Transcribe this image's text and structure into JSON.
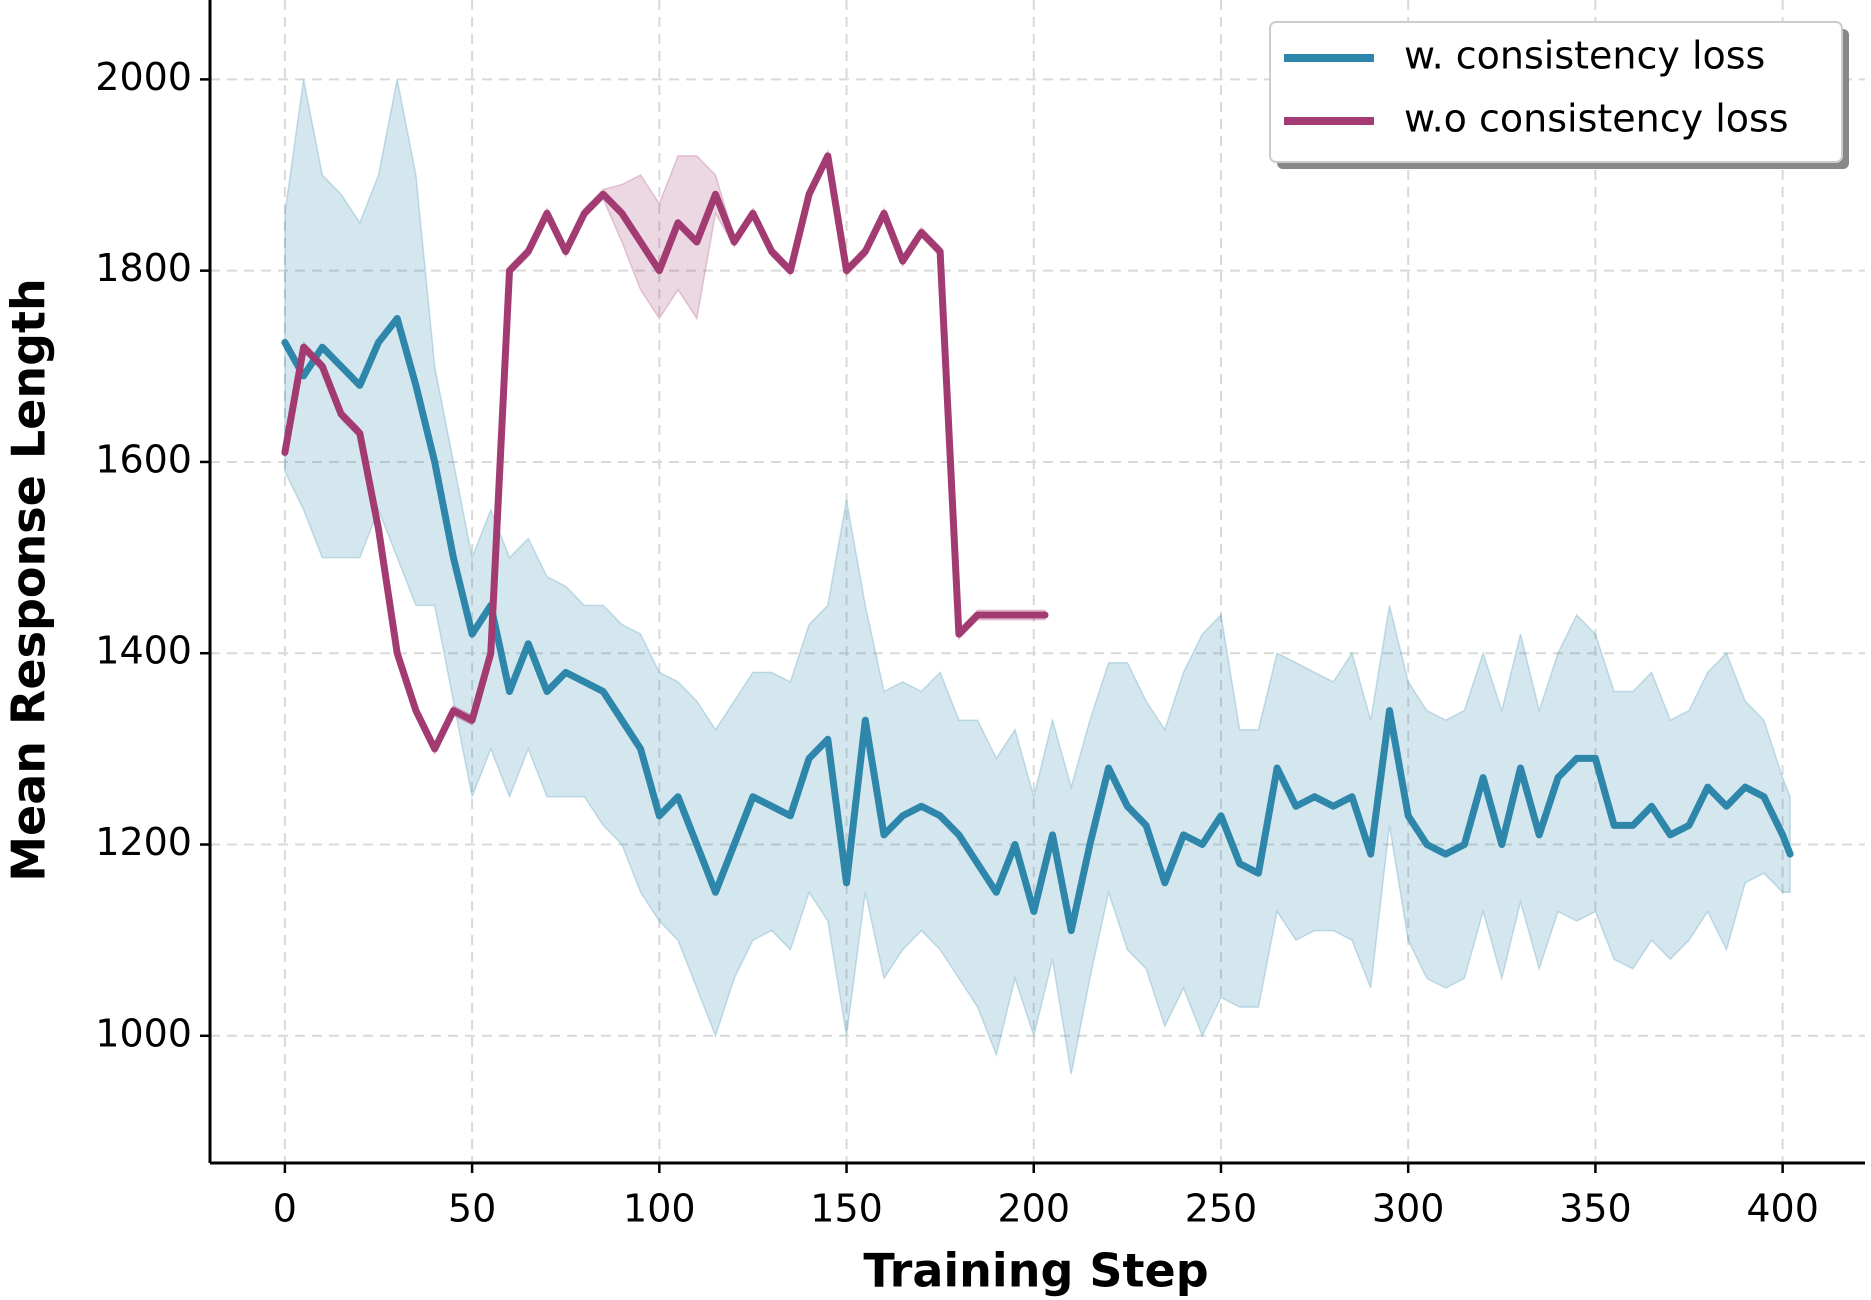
{
  "chart_data": {
    "type": "line",
    "xlabel": "Training Step",
    "ylabel": "Mean Response Length",
    "xlim": [
      -20,
      422
    ],
    "ylim": [
      867,
      2083
    ],
    "xticks": [
      0,
      50,
      100,
      150,
      200,
      250,
      300,
      350,
      400
    ],
    "yticks": [
      1000,
      1200,
      1400,
      1600,
      1800,
      2000
    ],
    "grid": true,
    "legend": "upper right",
    "series": [
      {
        "name": "w. consistency loss",
        "color": "#2e86ab",
        "x": [
          0,
          5,
          10,
          15,
          20,
          25,
          30,
          35,
          40,
          45,
          50,
          55,
          60,
          65,
          70,
          75,
          80,
          85,
          90,
          95,
          100,
          105,
          110,
          115,
          120,
          125,
          130,
          135,
          140,
          145,
          150,
          155,
          160,
          165,
          170,
          175,
          180,
          185,
          190,
          195,
          200,
          205,
          210,
          215,
          220,
          225,
          230,
          235,
          240,
          245,
          250,
          255,
          260,
          265,
          270,
          275,
          280,
          285,
          290,
          295,
          300,
          305,
          310,
          315,
          320,
          325,
          330,
          335,
          340,
          345,
          350,
          355,
          360,
          365,
          370,
          375,
          380,
          385,
          390,
          395,
          400,
          402
        ],
        "values": [
          1725,
          1690,
          1720,
          1700,
          1680,
          1725,
          1750,
          1680,
          1600,
          1500,
          1420,
          1450,
          1360,
          1410,
          1360,
          1380,
          1370,
          1360,
          1330,
          1300,
          1230,
          1250,
          1200,
          1150,
          1200,
          1250,
          1240,
          1230,
          1290,
          1310,
          1160,
          1330,
          1210,
          1230,
          1240,
          1230,
          1210,
          1180,
          1150,
          1200,
          1130,
          1210,
          1110,
          1200,
          1280,
          1240,
          1220,
          1160,
          1210,
          1200,
          1230,
          1180,
          1170,
          1280,
          1240,
          1250,
          1240,
          1250,
          1190,
          1340,
          1230,
          1200,
          1190,
          1200,
          1270,
          1200,
          1280,
          1210,
          1270,
          1290,
          1290,
          1220,
          1220,
          1240,
          1210,
          1220,
          1260,
          1240,
          1260,
          1250,
          1210,
          1190
        ],
        "upper": [
          1860,
          2000,
          1900,
          1880,
          1850,
          1900,
          2000,
          1900,
          1700,
          1600,
          1500,
          1550,
          1500,
          1520,
          1480,
          1470,
          1450,
          1450,
          1430,
          1420,
          1380,
          1370,
          1350,
          1320,
          1350,
          1380,
          1380,
          1370,
          1430,
          1450,
          1560,
          1450,
          1360,
          1370,
          1360,
          1380,
          1330,
          1330,
          1290,
          1320,
          1250,
          1330,
          1260,
          1330,
          1390,
          1390,
          1350,
          1320,
          1380,
          1420,
          1440,
          1320,
          1320,
          1400,
          1390,
          1380,
          1370,
          1400,
          1330,
          1450,
          1370,
          1340,
          1330,
          1340,
          1400,
          1340,
          1420,
          1340,
          1400,
          1440,
          1420,
          1360,
          1360,
          1380,
          1330,
          1340,
          1380,
          1400,
          1350,
          1330,
          1270,
          1250
        ],
        "lower": [
          1590,
          1550,
          1500,
          1500,
          1500,
          1550,
          1500,
          1450,
          1450,
          1350,
          1250,
          1300,
          1250,
          1300,
          1250,
          1250,
          1250,
          1220,
          1200,
          1150,
          1120,
          1100,
          1050,
          1000,
          1060,
          1100,
          1110,
          1090,
          1150,
          1120,
          1000,
          1150,
          1060,
          1090,
          1110,
          1090,
          1060,
          1030,
          980,
          1060,
          1000,
          1080,
          960,
          1060,
          1150,
          1090,
          1070,
          1010,
          1050,
          1000,
          1040,
          1030,
          1030,
          1130,
          1100,
          1110,
          1110,
          1100,
          1050,
          1220,
          1100,
          1060,
          1050,
          1060,
          1130,
          1060,
          1140,
          1070,
          1130,
          1120,
          1130,
          1080,
          1070,
          1100,
          1080,
          1100,
          1130,
          1090,
          1160,
          1170,
          1150,
          1150
        ]
      },
      {
        "name": "w.o consistency loss",
        "color": "#a23b72",
        "x": [
          0,
          5,
          10,
          15,
          20,
          25,
          30,
          35,
          40,
          45,
          50,
          55,
          60,
          65,
          70,
          75,
          80,
          85,
          90,
          95,
          100,
          105,
          110,
          115,
          120,
          125,
          130,
          135,
          140,
          145,
          150,
          155,
          160,
          165,
          170,
          175,
          180,
          185,
          190,
          195,
          200,
          203
        ],
        "values": [
          1610,
          1720,
          1700,
          1650,
          1630,
          1530,
          1400,
          1340,
          1300,
          1340,
          1330,
          1400,
          1800,
          1820,
          1860,
          1820,
          1860,
          1880,
          1860,
          1830,
          1800,
          1850,
          1830,
          1880,
          1830,
          1860,
          1820,
          1800,
          1880,
          1920,
          1800,
          1820,
          1860,
          1810,
          1840,
          1820,
          1420,
          1440,
          1440,
          1440,
          1440,
          1440
        ],
        "upper": [
          1615,
          1725,
          1705,
          1655,
          1635,
          1535,
          1405,
          1345,
          1305,
          1345,
          1335,
          1405,
          1805,
          1825,
          1865,
          1825,
          1865,
          1885,
          1890,
          1900,
          1870,
          1920,
          1920,
          1900,
          1835,
          1865,
          1825,
          1805,
          1885,
          1925,
          1805,
          1825,
          1865,
          1815,
          1845,
          1825,
          1425,
          1445,
          1445,
          1445,
          1445,
          1445
        ],
        "lower": [
          1605,
          1715,
          1695,
          1645,
          1625,
          1525,
          1395,
          1335,
          1295,
          1335,
          1325,
          1395,
          1795,
          1815,
          1855,
          1815,
          1855,
          1875,
          1830,
          1780,
          1750,
          1780,
          1750,
          1860,
          1825,
          1855,
          1815,
          1795,
          1875,
          1915,
          1795,
          1815,
          1855,
          1805,
          1835,
          1815,
          1415,
          1435,
          1435,
          1435,
          1435,
          1435
        ]
      }
    ]
  }
}
